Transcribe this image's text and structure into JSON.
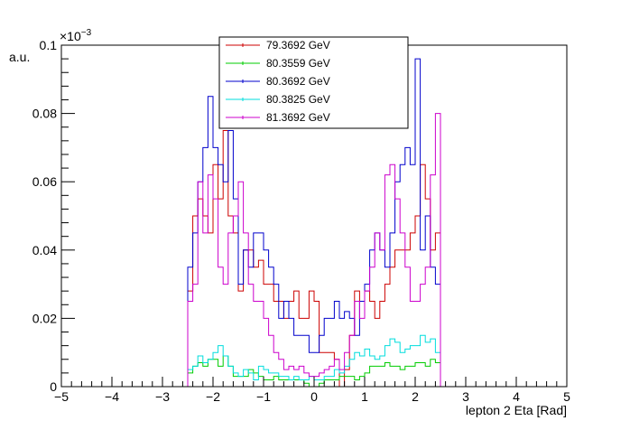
{
  "chart_data": {
    "type": "histogram",
    "xlabel": "lepton 2 Eta [Rad]",
    "ylabel": "a.u.",
    "y_exponent_label": "×10",
    "y_exponent_power": "−3",
    "xlim": [
      -5,
      5
    ],
    "ylim": [
      0,
      0.1
    ],
    "x_ticks": [
      -5,
      -4,
      -3,
      -2,
      -1,
      0,
      1,
      2,
      3,
      4,
      5
    ],
    "x_tick_labels": [
      "−5",
      "−4",
      "−3",
      "−2",
      "−1",
      "0",
      "1",
      "2",
      "3",
      "4",
      "5"
    ],
    "y_ticks": [
      0,
      0.02,
      0.04,
      0.06,
      0.08,
      0.1
    ],
    "y_tick_labels": [
      "0",
      "0.02",
      "0.04",
      "0.06",
      "0.08",
      "0.1"
    ],
    "bin_edges_start": -2.5,
    "bin_width": 0.1,
    "legend_position": "top-center",
    "series": [
      {
        "name": "79.3692 GeV",
        "color": "#cc0000",
        "values": [
          0.028,
          0.05,
          0.055,
          0.05,
          0.045,
          0.065,
          0.055,
          0.075,
          0.05,
          0.045,
          0.028,
          0.04,
          0.04,
          0.035,
          0.037,
          0.03,
          0.03,
          0.025,
          0.025,
          0.02,
          0.025,
          0.028,
          0.02,
          0.02,
          0.028,
          0.025,
          0.01,
          0.01,
          0.01,
          0.008,
          0,
          0.005,
          0.015,
          0.028,
          0.025,
          0.028,
          0.025,
          0.02,
          0.025,
          0.03,
          0.035,
          0.04,
          0.04,
          0.04,
          0.045,
          0.05,
          0.065,
          0.055,
          0.04,
          0.045
        ]
      },
      {
        "name": "80.3559 GeV",
        "color": "#00cc00",
        "values": [
          0.004,
          0.006,
          0.007,
          0.006,
          0.008,
          0.008,
          0.006,
          0.009,
          0.006,
          0.003,
          0.003,
          0.003,
          0.005,
          0.004,
          0.003,
          0.002,
          0.002,
          0.003,
          0.002,
          0.002,
          0.002,
          0.002,
          0.002,
          0.001,
          0,
          0,
          0.001,
          0.002,
          0.002,
          0.002,
          0.003,
          0.003,
          0.003,
          0.002,
          0.003,
          0.004,
          0.006,
          0.006,
          0.006,
          0.007,
          0.006,
          0.006,
          0.005,
          0.006,
          0.006,
          0.007,
          0.007,
          0.006,
          0.008,
          0.007
        ]
      },
      {
        "name": "80.3692 GeV",
        "color": "#0000cc",
        "values": [
          0.035,
          0.045,
          0.06,
          0.07,
          0.085,
          0.07,
          0.065,
          0.06,
          0.075,
          0.055,
          0.03,
          0.04,
          0.035,
          0.045,
          0.045,
          0.04,
          0.035,
          0.03,
          0.02,
          0.025,
          0.02,
          0.015,
          0.015,
          0.015,
          0.01,
          0.01,
          0.015,
          0.02,
          0.02,
          0.025,
          0.02,
          0.022,
          0.02,
          0.015,
          0.025,
          0.03,
          0.04,
          0.045,
          0.04,
          0.035,
          0.045,
          0.06,
          0.065,
          0.07,
          0.065,
          0.096,
          0.04,
          0.05,
          0.035,
          0.03
        ]
      },
      {
        "name": "80.3825 GeV",
        "color": "#00dddd",
        "values": [
          0.005,
          0.006,
          0.009,
          0.007,
          0.008,
          0.01,
          0.012,
          0.009,
          0.006,
          0.004,
          0.003,
          0.005,
          0.004,
          0.002,
          0.006,
          0.005,
          0.004,
          0.004,
          0.003,
          0.003,
          0.002,
          0.003,
          0.002,
          0.002,
          0.003,
          0.002,
          0.002,
          0.003,
          0.003,
          0.005,
          0.004,
          0.006,
          0.008,
          0.01,
          0.009,
          0.011,
          0.009,
          0.008,
          0.009,
          0.012,
          0.014,
          0.013,
          0.01,
          0.011,
          0.012,
          0.012,
          0.015,
          0.013,
          0.014,
          0.01
        ]
      },
      {
        "name": "81.3692 GeV",
        "color": "#cc00cc",
        "values": [
          0.025,
          0.03,
          0.06,
          0.045,
          0.062,
          0.055,
          0.035,
          0.03,
          0.045,
          0.05,
          0.06,
          0.045,
          0.03,
          0.025,
          0.025,
          0.02,
          0.015,
          0.01,
          0.008,
          0.005,
          0.006,
          0.005,
          0.006,
          0.004,
          0.003,
          0.003,
          0.004,
          0.005,
          0.006,
          0.008,
          0.005,
          0.01,
          0.015,
          0.025,
          0.02,
          0.028,
          0.035,
          0.045,
          0.04,
          0.062,
          0.065,
          0.055,
          0.045,
          0.035,
          0.025,
          0.025,
          0.03,
          0.035,
          0.062,
          0.08
        ]
      }
    ]
  }
}
